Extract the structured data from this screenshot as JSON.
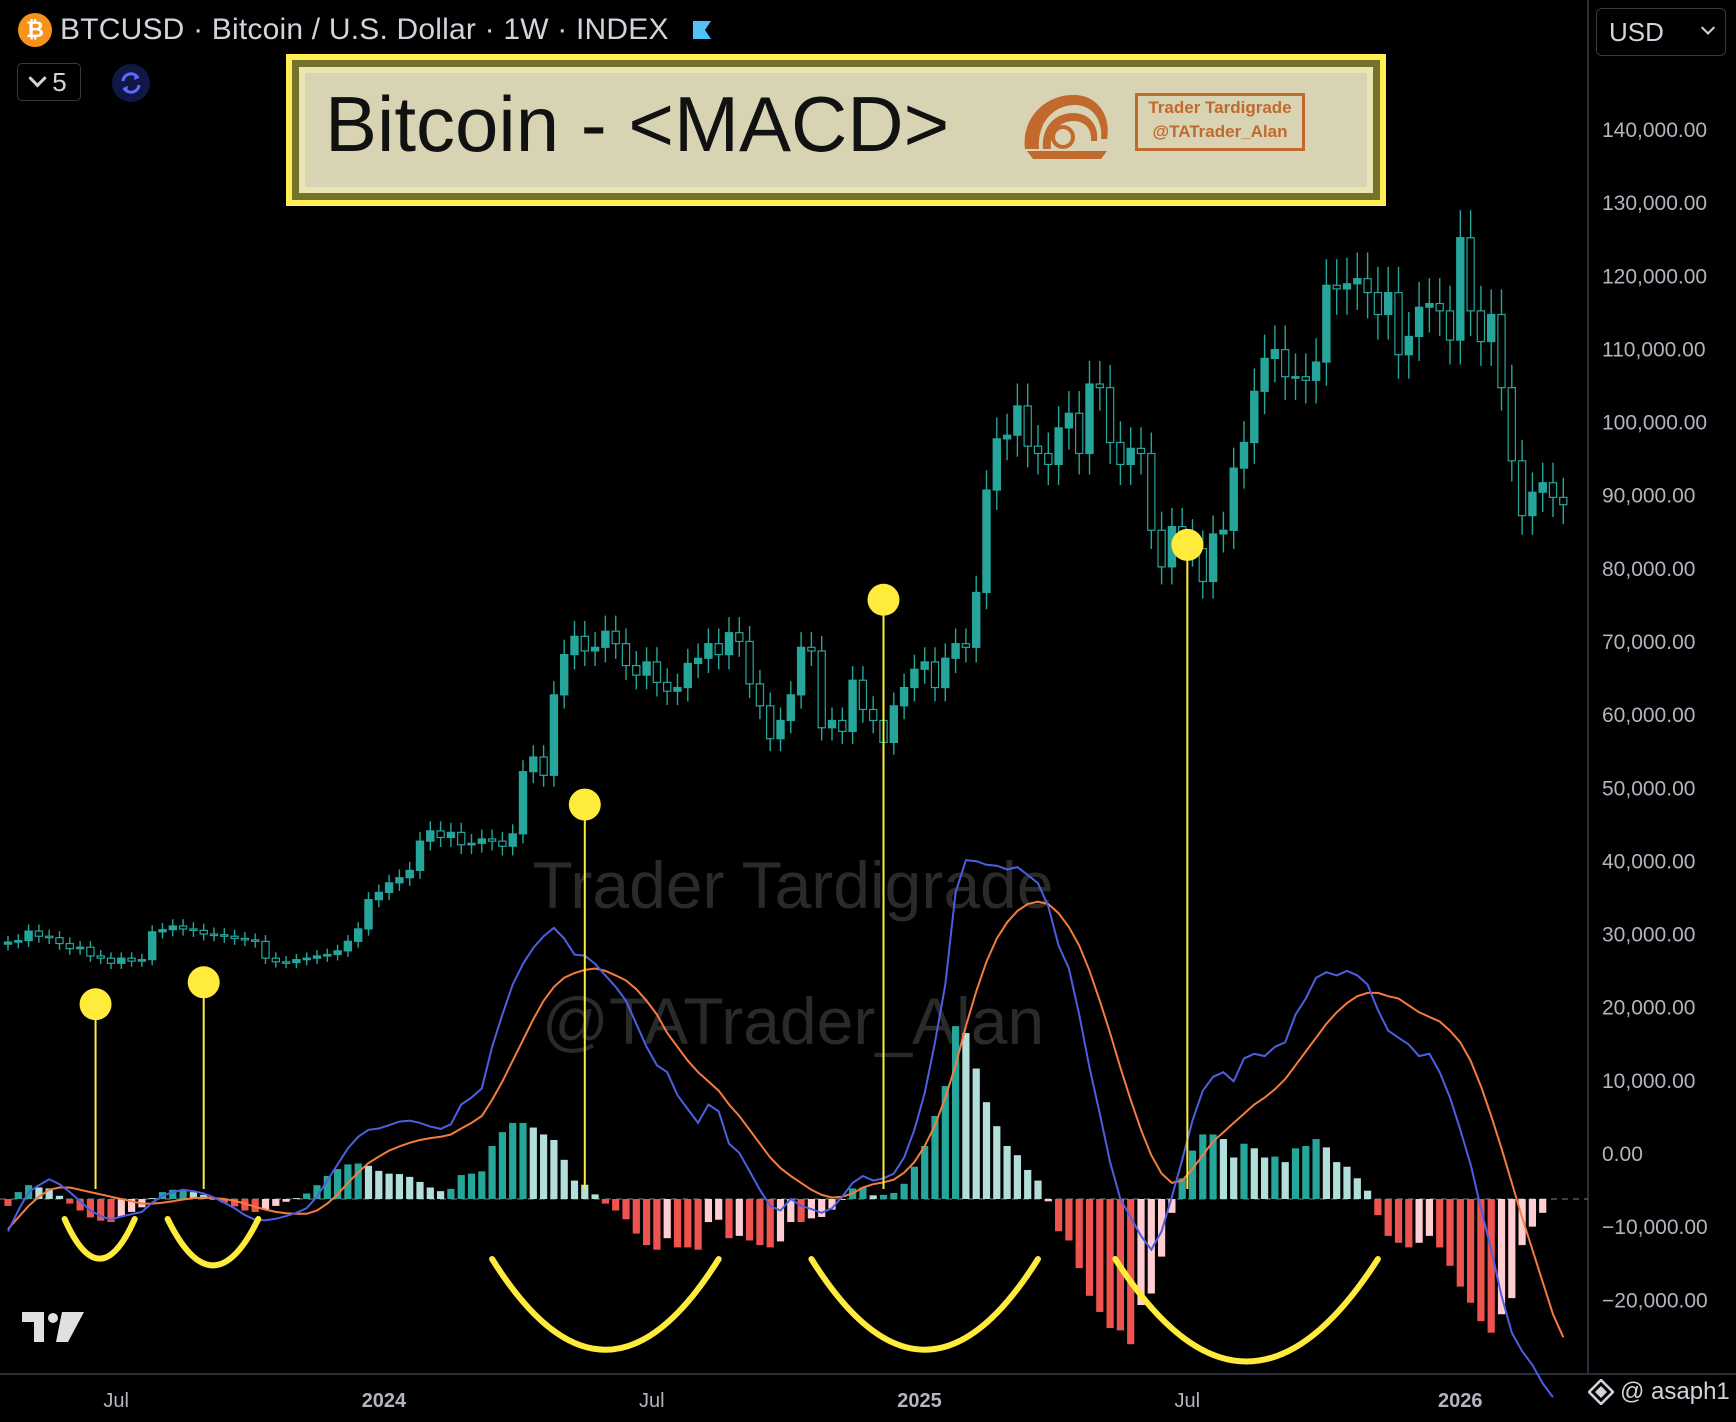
{
  "header": {
    "symbol_title": "BTCUSD · Bitcoin / U.S. Dollar · 1W · INDEX",
    "btc_icon_glyph": "₿",
    "collapse_count": "5",
    "currency": "USD"
  },
  "banner": {
    "title": "Bitcoin - <MACD>",
    "logo_line1": "Trader Tardigrade",
    "logo_line2": "@TATrader_Alan"
  },
  "watermark": {
    "line1": "Trader Tardigrade",
    "line2": "@TATrader_Alan"
  },
  "credit": "@ asaph1",
  "colors": {
    "candle_up": "#26a69a",
    "macd_line": "#4c5fe0",
    "signal_line": "#f47c3c",
    "hist_pos_strong": "#26a69a",
    "hist_pos_weak": "#b2dfdb",
    "hist_neg_strong": "#ef5350",
    "hist_neg_weak": "#ffcdd2",
    "annotation": "#ffeb3b"
  },
  "chart_data": {
    "type": "line",
    "price_axis": {
      "ticks": [
        -20000,
        -10000,
        0,
        10000,
        20000,
        30000,
        40000,
        50000,
        60000,
        70000,
        80000,
        90000,
        100000,
        110000,
        120000,
        130000,
        140000
      ],
      "tick_labels": [
        "−20,000.00",
        "−10,000.00",
        "0.00",
        "10,000.00",
        "20,000.00",
        "30,000.00",
        "40,000.00",
        "50,000.00",
        "60,000.00",
        "70,000.00",
        "80,000.00",
        "90,000.00",
        "100,000.00",
        "110,000.00",
        "120,000.00",
        "130,000.00",
        "140,000.00"
      ],
      "ylim": [
        -26000,
        145000
      ]
    },
    "time_axis": {
      "labels": [
        "Jul",
        "2024",
        "Jul",
        "2025",
        "Jul",
        "2026"
      ],
      "label_weeks": [
        10.5,
        36.5,
        62.5,
        88.5,
        114.5,
        141
      ],
      "week_range": [
        0,
        154
      ]
    },
    "btc_close": [
      28700,
      28900,
      30200,
      29500,
      29300,
      28500,
      27800,
      28000,
      26800,
      26500,
      25800,
      26500,
      26100,
      26300,
      30100,
      30400,
      30900,
      30500,
      30300,
      29800,
      29700,
      29500,
      29200,
      29000,
      28800,
      26500,
      26000,
      25900,
      26300,
      26500,
      26800,
      27000,
      27500,
      28800,
      30500,
      34500,
      35500,
      36800,
      37500,
      38500,
      42500,
      43900,
      43000,
      43700,
      42000,
      42200,
      42800,
      42500,
      41800,
      43500,
      52000,
      54000,
      51500,
      62500,
      68000,
      70500,
      68500,
      69000,
      71200,
      69500,
      66500,
      65200,
      67000,
      64200,
      63000,
      63500,
      66800,
      67500,
      69500,
      68000,
      71000,
      69800,
      64000,
      61000,
      56500,
      59000,
      62500,
      69000,
      68500,
      58000,
      59000,
      57500,
      64500,
      60500,
      59000,
      56000,
      61000,
      63500,
      66000,
      67000,
      63500,
      67500,
      69500,
      69000,
      76500,
      90500,
      97500,
      98000,
      102000,
      96500,
      95500,
      94000,
      99000,
      101000,
      95500,
      105000,
      104500,
      97000,
      94000,
      96200,
      95500,
      85000,
      80000,
      85500,
      84000,
      82500,
      78000,
      84500,
      85000,
      93500,
      97000,
      104000,
      108500,
      109700,
      106000,
      106000,
      105500,
      108000,
      118500,
      118000,
      118700,
      119400,
      117500,
      114500,
      117500,
      109000,
      111500,
      115500,
      116000,
      115000,
      111000,
      125000,
      115000,
      110800,
      114500,
      104500,
      94500,
      87000,
      90200,
      91500,
      89500,
      88500
    ],
    "macd": [
      -7000,
      -2500,
      1500,
      3000,
      4300,
      3200,
      1500,
      -500,
      -2500,
      -3700,
      -4500,
      -3800,
      -3300,
      -2800,
      -800,
      700,
      1500,
      2000,
      1700,
      1200,
      300,
      -800,
      -2000,
      -3500,
      -4500,
      -4600,
      -4300,
      -3700,
      -3000,
      -2000,
      500,
      4000,
      7500,
      11000,
      13500,
      15000,
      15300,
      16000,
      16800,
      17000,
      16500,
      15700,
      15200,
      16200,
      20500,
      22000,
      24000,
      33000,
      40000,
      46500,
      51000,
      54500,
      57000,
      58800,
      56500,
      53000,
      52800,
      51000,
      48500,
      46000,
      43000,
      38000,
      33000,
      29000,
      27500,
      22500,
      19500,
      16500,
      20500,
      19000,
      12000,
      10000,
      6000,
      2000,
      -1500,
      -2500,
      0,
      -1500,
      -2200,
      -3000,
      -2000,
      500,
      3500,
      5000,
      4000,
      4500,
      5500,
      9000,
      15000,
      23000,
      34000,
      46500,
      66500,
      73500,
      73300,
      72500,
      72300,
      71500,
      72000,
      70300,
      68500,
      63500,
      55000,
      50000,
      40000,
      28500,
      18500,
      8000,
      0,
      -4000,
      -8000,
      -11000,
      -7000,
      500,
      8500,
      17000,
      23500,
      26500,
      27500,
      25500,
      30500,
      31500,
      31000,
      33000,
      34000,
      40000,
      43500,
      48000,
      49200,
      48500,
      49500,
      48500,
      46500,
      41000,
      36500,
      35000,
      33500,
      31000,
      31500,
      27500,
      22000,
      15000,
      7500,
      -2000,
      -11000,
      -21000,
      -29000,
      -33000,
      -36000,
      -40000,
      -43000
    ],
    "signal": [
      -6500,
      -4000,
      -1500,
      500,
      2000,
      2500,
      2500,
      2000,
      1500,
      1000,
      500,
      0,
      -500,
      -1000,
      -1000,
      -800,
      -500,
      -100,
      200,
      300,
      200,
      0,
      -400,
      -1000,
      -1700,
      -2300,
      -2800,
      -3100,
      -3200,
      -3200,
      -2500,
      -1000,
      1000,
      3500,
      5800,
      7800,
      9200,
      10500,
      11400,
      12200,
      12800,
      13200,
      13500,
      14000,
      15300,
      16500,
      18000,
      21500,
      25500,
      30000,
      34500,
      39000,
      43000,
      46000,
      48000,
      49000,
      49700,
      50000,
      49500,
      48500,
      47400,
      45500,
      43000,
      40000,
      36000,
      33000,
      30000,
      27500,
      25500,
      23500,
      20500,
      18000,
      15000,
      12000,
      9000,
      6700,
      5000,
      3500,
      2000,
      900,
      300,
      500,
      1200,
      2500,
      3200,
      3600,
      4200,
      5700,
      8000,
      11500,
      16000,
      22000,
      29000,
      37500,
      45000,
      51500,
      56500,
      60000,
      62500,
      64000,
      64500,
      64000,
      62000,
      59000,
      55000,
      49500,
      43000,
      36000,
      28500,
      21500,
      15000,
      9500,
      5500,
      3500,
      4000,
      6500,
      9500,
      12500,
      14500,
      16500,
      18500,
      20500,
      22000,
      23800,
      26000,
      29000,
      32000,
      35000,
      38000,
      40500,
      42500,
      44000,
      44700,
      44700,
      44000,
      43500,
      42000,
      40500,
      39500,
      38500,
      36500,
      34000,
      30000,
      24500,
      18000,
      11000,
      3500,
      -4000,
      -11000,
      -18000,
      -25000,
      -30000
    ],
    "histogram": [
      -1500,
      1500,
      3000,
      2500,
      2300,
      700,
      -1000,
      -2500,
      -4000,
      -4700,
      -5000,
      -3800,
      -2800,
      -1800,
      200,
      1500,
      2000,
      2100,
      1500,
      900,
      100,
      -800,
      -1600,
      -2500,
      -2800,
      -2300,
      -1500,
      -600,
      200,
      1200,
      3000,
      5000,
      6500,
      7500,
      7700,
      7200,
      6100,
      5500,
      5400,
      4800,
      3700,
      2500,
      1700,
      2200,
      5200,
      5500,
      6000,
      11500,
      14500,
      16500,
      16500,
      15500,
      14000,
      12800,
      8500,
      4000,
      3100,
      1000,
      -1000,
      -2500,
      -4400,
      -7500,
      -10000,
      -11000,
      -8500,
      -10500,
      -10500,
      -11000,
      -5000,
      -4500,
      -8500,
      -8000,
      -9000,
      -10000,
      -10500,
      -9200,
      -5000,
      -5000,
      -4200,
      -3900,
      -2300,
      0,
      2300,
      2500,
      800,
      900,
      1300,
      3300,
      7000,
      11500,
      18000,
      24500,
      37500,
      36000,
      28300,
      21000,
      15800,
      11500,
      9500,
      6300,
      4000,
      -500,
      -7000,
      -9000,
      -15000,
      -21000,
      -24500,
      -28000,
      -28500,
      -31500,
      -23000,
      -20500,
      -12500,
      -3000,
      4500,
      10500,
      14000,
      14000,
      13000,
      9000,
      12000,
      11000,
      9000,
      9200,
      8000,
      11000,
      11500,
      13000,
      11200,
      8000,
      7000,
      4500,
      1800,
      -3500,
      -8000,
      -9500,
      -10500,
      -9500,
      -8000,
      -10500,
      -14500,
      -19000,
      -22500,
      -26500,
      -29000,
      -25000,
      -21500,
      -10000,
      -6000,
      -3000
    ],
    "annotations": {
      "dot_weeks": [
        8.5,
        19,
        56,
        85,
        114.5
      ],
      "dot_prices": [
        20200,
        23200,
        47500,
        75500,
        83000
      ],
      "dot_weeks_exact": [
        8.5,
        19,
        56,
        85,
        114.5
      ]
    }
  }
}
